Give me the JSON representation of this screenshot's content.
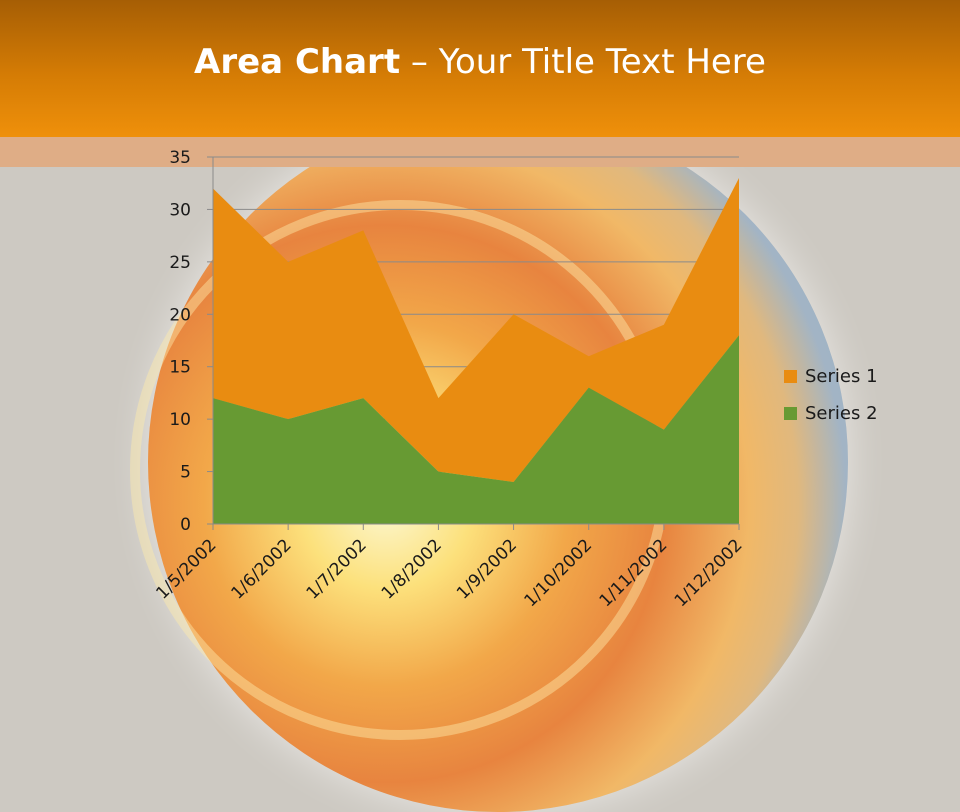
{
  "header": {
    "title_bold": "Area Chart",
    "title_rest": " – Your Title Text Here"
  },
  "colors": {
    "series1": "#e98c11",
    "series2": "#679a33",
    "grid": "#8a8a8a"
  },
  "chart_data": {
    "type": "area",
    "stacked": true,
    "title": "",
    "xlabel": "",
    "ylabel": "",
    "x": [
      "1/5/2002",
      "1/6/2002",
      "1/7/2002",
      "1/8/2002",
      "1/9/2002",
      "1/10/2002",
      "1/11/2002",
      "1/12/2002"
    ],
    "series": [
      {
        "name": "Series 1",
        "values": [
          20,
          15,
          16,
          7,
          16,
          3,
          10,
          15
        ]
      },
      {
        "name": "Series 2",
        "values": [
          12,
          10,
          12,
          5,
          4,
          13,
          9,
          18
        ]
      }
    ],
    "yticks": [
      "0",
      "5",
      "10",
      "15",
      "20",
      "25",
      "30",
      "35"
    ],
    "ylim": [
      0,
      35
    ],
    "grid": true,
    "legend": "right"
  }
}
